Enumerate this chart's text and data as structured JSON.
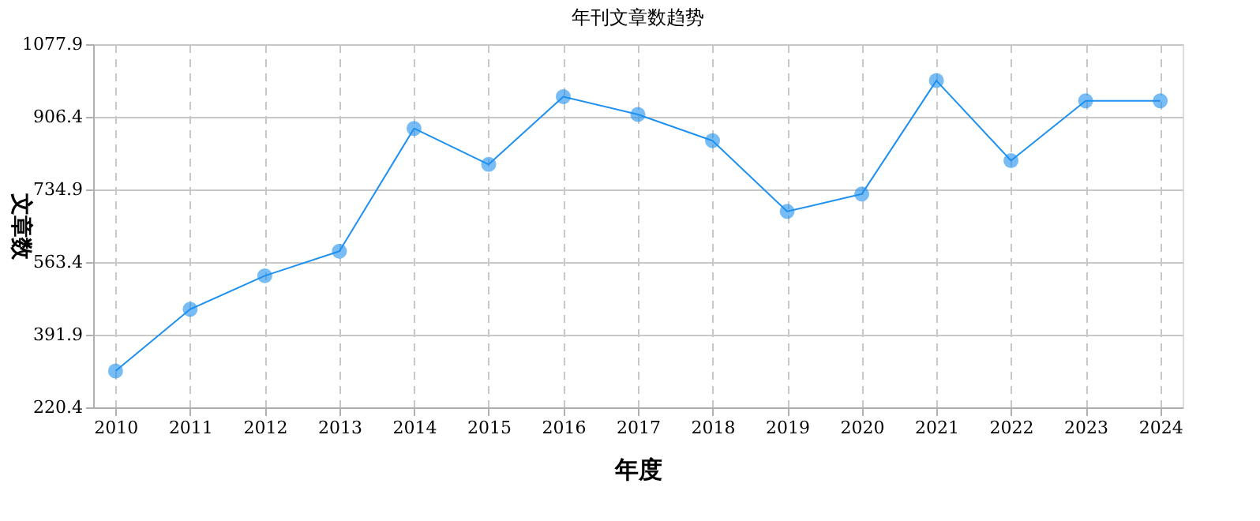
{
  "chart_data": {
    "type": "line",
    "title": "年刊文章数趋势",
    "xlabel": "年度",
    "ylabel": "文章数",
    "categories": [
      "2010",
      "2011",
      "2012",
      "2013",
      "2014",
      "2015",
      "2016",
      "2017",
      "2018",
      "2019",
      "2020",
      "2021",
      "2022",
      "2023",
      "2024"
    ],
    "series": [
      {
        "color": "#1e90f0",
        "values": [
          306,
          452,
          531,
          589,
          879,
          794,
          954,
          912,
          850,
          683,
          724,
          992,
          803,
          944,
          944
        ]
      }
    ],
    "ylim": [
      220.4,
      1077.9
    ],
    "yticks": [
      220.4,
      391.9,
      563.4,
      734.9,
      906.4,
      1077.9
    ],
    "grid": true,
    "marker": "circle",
    "line_style": "solid"
  }
}
